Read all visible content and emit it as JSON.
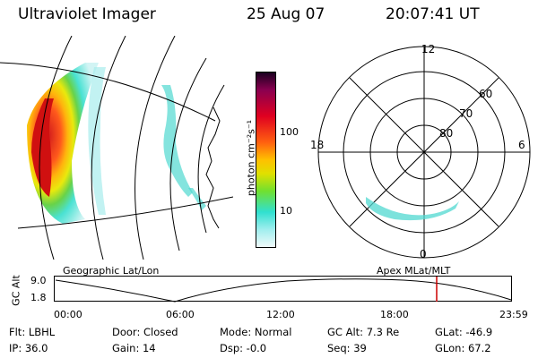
{
  "header": {
    "instrument": "Ultraviolet Imager",
    "date": "25 Aug 07",
    "time": "20:07:41 UT"
  },
  "colorbar": {
    "unit_label": "photon cm⁻²s⁻¹",
    "ticks": [
      "100",
      "10"
    ]
  },
  "polar_plot": {
    "mlt_labels": [
      "12",
      "18",
      "6",
      "0"
    ],
    "lat_labels": [
      "60",
      "70",
      "80"
    ]
  },
  "timeline": {
    "left_title": "Geographic Lat/Lon",
    "right_title": "Apex MLat/MLT",
    "yaxis_label": "GC Alt",
    "y_ticks": [
      "9.0",
      "1.8"
    ],
    "x_ticks": [
      "00:00",
      "06:00",
      "12:00",
      "18:00",
      "23:59"
    ],
    "marker_color": "#cc0000"
  },
  "info": {
    "row1": {
      "filter": "Flt: LBHL",
      "door": "Door: Closed",
      "mode": "Mode: Normal",
      "gc_alt": "GC Alt: 7.3 Re",
      "glat": "GLat: -46.9"
    },
    "row2": {
      "ip": "IP: 36.0",
      "gain": "Gain: 14",
      "dsp": "Dsp:   -0.0",
      "seq": "Seq: 39",
      "glon": "GLon:  67.2"
    }
  }
}
